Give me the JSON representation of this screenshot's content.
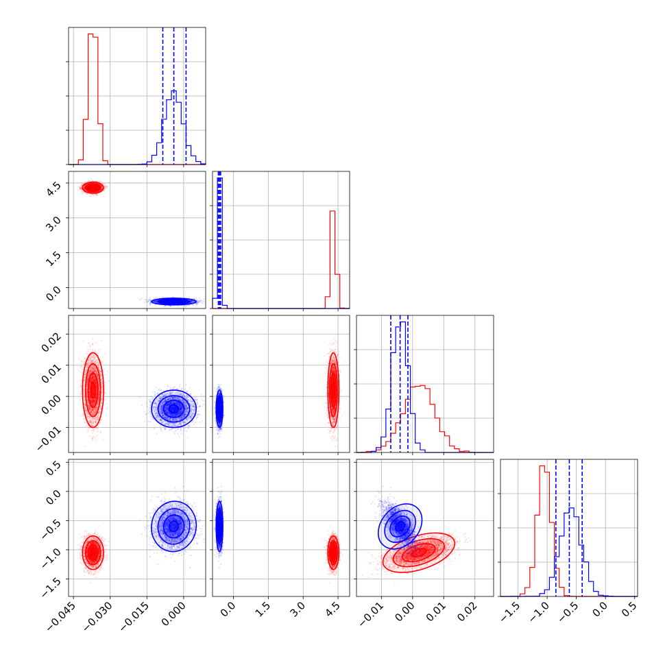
{
  "chart_data": {
    "type": "corner",
    "parameters": 4,
    "grid": true,
    "series": [
      {
        "color": "#ff0000",
        "samples": "red posterior"
      },
      {
        "color": "#0000ff",
        "samples": "blue posterior"
      }
    ],
    "colors": {
      "series_a": "#ff0000",
      "series_b": "#0000ff",
      "grid": "#b0b0b0"
    },
    "params": [
      {
        "range": [
          -0.047,
          0.009
        ],
        "ticks": [
          -0.045,
          -0.03,
          -0.015,
          0.0
        ],
        "tick_labels": [
          "−0.045",
          "−0.030",
          "−0.015",
          "0.000"
        ],
        "red": {
          "mean": -0.037,
          "sd": 0.0018
        },
        "blue": {
          "mean": -0.004,
          "sd": 0.0038
        },
        "blue_quantiles": [
          -0.0085,
          -0.004,
          0.001
        ]
      },
      {
        "range": [
          -0.9,
          5.0
        ],
        "ticks": [
          0.0,
          1.5,
          3.0,
          4.5
        ],
        "tick_labels": [
          "0.0",
          "1.5",
          "3.0",
          "4.5"
        ],
        "red": {
          "mean": 4.3,
          "sd": 0.1
        },
        "blue": {
          "mean": -0.6,
          "sd": 0.06
        },
        "blue_quantiles": [
          -0.65,
          -0.6,
          -0.55
        ]
      },
      {
        "range": [
          -0.018,
          0.026
        ],
        "ticks": [
          -0.01,
          0.0,
          0.01,
          0.02
        ],
        "tick_labels": [
          "−0.01",
          "0.00",
          "0.01",
          "0.02"
        ],
        "red": {
          "mean": 0.002,
          "sd": 0.005
        },
        "blue": {
          "mean": -0.004,
          "sd": 0.0025
        },
        "blue_quantiles": [
          -0.007,
          -0.004,
          -0.0015
        ]
      },
      {
        "range": [
          -1.8,
          0.55
        ],
        "ticks": [
          -1.5,
          -1.0,
          -0.5,
          0.0,
          0.5
        ],
        "tick_labels": [
          "−1.5",
          "−1.0",
          "−0.5",
          "0.0",
          "0.5"
        ],
        "red": {
          "mean": -1.05,
          "sd": 0.12
        },
        "blue": {
          "mean": -0.6,
          "sd": 0.18
        },
        "blue_quantiles": [
          -0.85,
          -0.62,
          -0.4
        ]
      }
    ],
    "correlations": {
      "red": {
        "2_3": -0.6
      },
      "blue": {
        "2_3": -0.7,
        "3_4": 0.0
      }
    }
  }
}
